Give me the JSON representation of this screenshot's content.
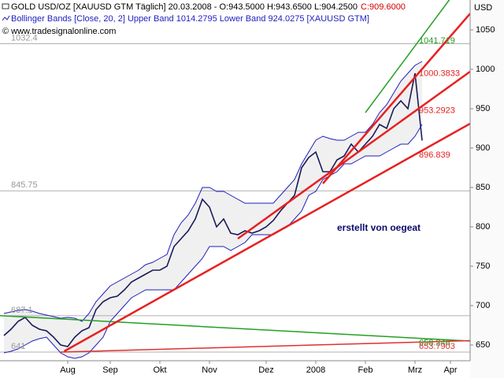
{
  "chart_data": {
    "type": "price",
    "header": "GOLD USD/OZ [XAUUSD GTM  Täglich] 20.03.2008 - O:943.5000 H:943.6500 L:904.2500",
    "header_close": "C:909.6000",
    "subtitle": "Bollinger Bands [Close, 20, 2] Upper Band 1014.2795 Lower Band 924.0275 [XAUUSD GTM]",
    "copyright": "© www.tradesignalonline.com",
    "annotation": "erstellt von oegeat",
    "y_label": "USD",
    "categories": [
      null,
      null,
      null,
      null,
      null,
      null,
      null,
      null,
      null,
      "Aug",
      null,
      null,
      null,
      null,
      null,
      "Sep",
      null,
      null,
      null,
      null,
      null,
      null,
      "Okt",
      null,
      null,
      null,
      null,
      null,
      null,
      "Nov",
      null,
      null,
      null,
      null,
      null,
      null,
      null,
      "Dez",
      null,
      null,
      null,
      null,
      null,
      null,
      "2008",
      null,
      null,
      null,
      null,
      null,
      null,
      "Feb",
      null,
      null,
      null,
      null,
      null,
      null,
      "Mrz",
      null,
      null,
      null,
      null,
      "Apr",
      null,
      null
    ],
    "series": [
      {
        "name": "Close",
        "color": "#1a1a5a",
        "values": [
          662,
          670,
          680,
          685,
          675,
          670,
          668,
          660,
          650,
          648,
          660,
          668,
          672,
          695,
          705,
          710,
          712,
          720,
          730,
          735,
          740,
          745,
          745,
          750,
          775,
          785,
          795,
          810,
          835,
          825,
          800,
          810,
          792,
          790,
          795,
          792,
          795,
          800,
          808,
          820,
          830,
          840,
          875,
          888,
          895,
          870,
          870,
          885,
          890,
          905,
          895,
          905,
          915,
          930,
          925,
          950,
          960,
          950,
          995,
          909.6,
          null,
          null,
          null,
          null,
          null,
          null
        ]
      },
      {
        "name": "Upper Band",
        "color": "#1e1ebe",
        "values": [
          690,
          692,
          694,
          695,
          693,
          690,
          688,
          686,
          684,
          685,
          684,
          680,
          690,
          705,
          715,
          725,
          730,
          735,
          740,
          745,
          752,
          755,
          760,
          765,
          790,
          805,
          815,
          830,
          850,
          850,
          845,
          845,
          840,
          835,
          830,
          830,
          830,
          830,
          830,
          840,
          850,
          860,
          880,
          895,
          910,
          915,
          912,
          910,
          910,
          915,
          920,
          920,
          930,
          945,
          955,
          970,
          985,
          995,
          1005,
          1010,
          null,
          null,
          null,
          null,
          null,
          null
        ]
      },
      {
        "name": "Lower Band",
        "color": "#1e1ebe",
        "values": [
          640,
          642,
          645,
          650,
          655,
          658,
          660,
          650,
          640,
          635,
          633,
          635,
          640,
          650,
          660,
          680,
          690,
          700,
          710,
          715,
          720,
          720,
          720,
          720,
          720,
          730,
          740,
          750,
          760,
          775,
          775,
          775,
          770,
          775,
          780,
          790,
          790,
          790,
          790,
          795,
          800,
          810,
          820,
          840,
          845,
          860,
          865,
          870,
          880,
          880,
          885,
          890,
          890,
          890,
          895,
          900,
          905,
          905,
          915,
          930,
          null,
          null,
          null,
          null,
          null,
          null
        ]
      }
    ],
    "levels": [
      1032.4,
      845.75,
      687.1,
      641
    ],
    "trendlines": [
      {
        "color": "#22a022",
        "anchor": [
          0,
          687
        ],
        "value": 658.246
      },
      {
        "color": "#e03030",
        "anchor": [
          8,
          641
        ],
        "value": 653.7903
      },
      {
        "color": "#e82020",
        "anchor": [
          8.5,
          642
        ],
        "value": 896.839
      },
      {
        "color": "#e82020",
        "anchor": [
          33,
          785
        ],
        "value": 953.2923
      },
      {
        "color": "#e82020",
        "anchor": [
          45,
          855
        ],
        "value": 1000.3833
      },
      {
        "color": "#22a022",
        "anchor": [
          51,
          945
        ],
        "value": 1041.719
      }
    ],
    "ylim": [
      630,
      1088
    ],
    "yticks": [
      650,
      700,
      750,
      800,
      850,
      900,
      950,
      1000,
      1050
    ]
  }
}
